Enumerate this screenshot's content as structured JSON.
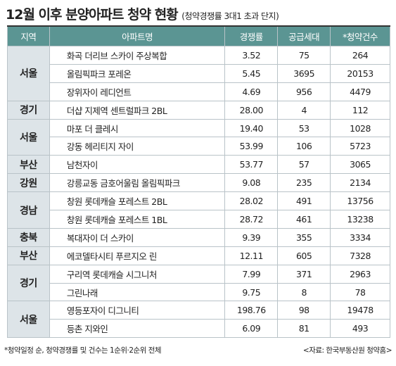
{
  "title": "12월 이후 분양아파트 청약 현황",
  "subtitle": "(청약경쟁률 3대1 초과 단지)",
  "table": {
    "header": [
      "지역",
      "아파트명",
      "경쟁률",
      "공급세대",
      "*청약건수"
    ],
    "groups": [
      {
        "region": "서울",
        "rows": [
          [
            "화곡 더리브 스카이 주상복합",
            "3.52",
            "75",
            "264"
          ],
          [
            "올림픽파크 포레온",
            "5.45",
            "3695",
            "20153"
          ],
          [
            "장위자이 레디언트",
            "4.69",
            "956",
            "4479"
          ]
        ]
      },
      {
        "region": "경기",
        "rows": [
          [
            "더샵 지제역 센트럴파크 2BL",
            "28.00",
            "4",
            "112"
          ]
        ]
      },
      {
        "region": "서울",
        "rows": [
          [
            "마포 더 클레시",
            "19.40",
            "53",
            "1028"
          ],
          [
            "강동 헤리티지 자이",
            "53.99",
            "106",
            "5723"
          ]
        ]
      },
      {
        "region": "부산",
        "rows": [
          [
            "남천자이",
            "53.77",
            "57",
            "3065"
          ]
        ]
      },
      {
        "region": "강원",
        "rows": [
          [
            "강릉교동 금호어울림 올림픽파크",
            "9.08",
            "235",
            "2134"
          ]
        ]
      },
      {
        "region": "경남",
        "rows": [
          [
            "창원 롯데캐슬 포레스트 2BL",
            "28.02",
            "491",
            "13756"
          ],
          [
            "창원 롯데캐슬 포레스트 1BL",
            "28.72",
            "461",
            "13238"
          ]
        ]
      },
      {
        "region": "충북",
        "rows": [
          [
            "복대자이 더 스카이",
            "9.39",
            "355",
            "3334"
          ]
        ]
      },
      {
        "region": "부산",
        "rows": [
          [
            "에코델타시티 푸르지오 린",
            "12.11",
            "605",
            "7328"
          ]
        ]
      },
      {
        "region": "경기",
        "rows": [
          [
            "구리역 롯데캐슬 시그니처",
            "7.99",
            "371",
            "2963"
          ],
          [
            "그린나래",
            "9.75",
            "8",
            "78"
          ]
        ]
      },
      {
        "region": "서울",
        "rows": [
          [
            "영등포자이 디그니티",
            "198.76",
            "98",
            "19478"
          ],
          [
            "등촌 지와인",
            "6.09",
            "81",
            "493"
          ]
        ]
      }
    ]
  },
  "footnote": "*청약일정 순, 청약경쟁률 및 건수는 1순위·2순위 전체",
  "source": "<자료: 한국부동산원 청약홈>"
}
